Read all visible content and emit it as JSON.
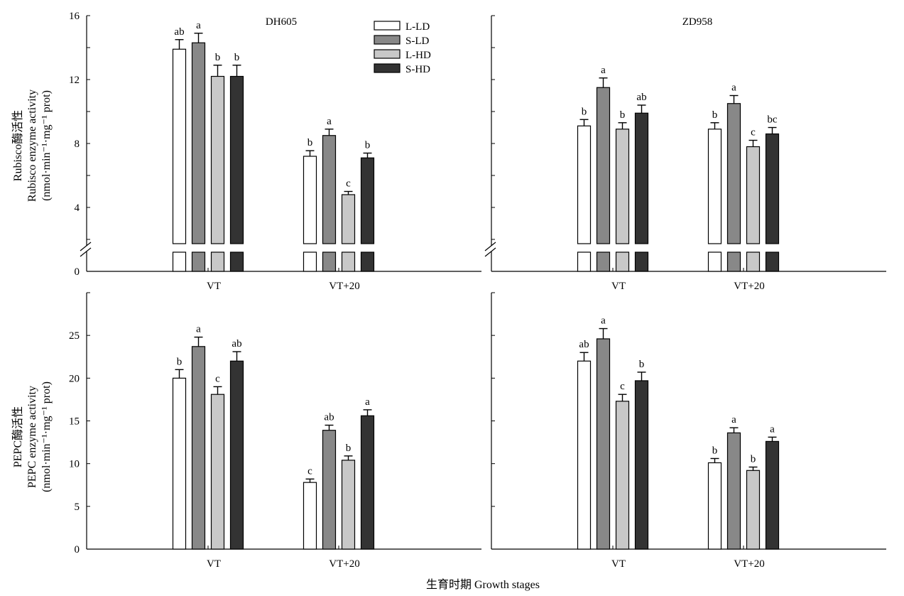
{
  "figure": {
    "x_axis_title": "生育时期 Growth stages",
    "y_axis_titles": {
      "rubisco": [
        "Rubisco酶活性",
        "Rubisco enzyme activity",
        "(nmol·min⁻¹·mg⁻¹ prot)"
      ],
      "pepc": [
        "PEPC酶活性",
        "PEPC enzyme activity",
        "(nmol·min⁻¹·mg⁻¹ prot)"
      ]
    }
  },
  "legend": [
    {
      "name": "L-LD",
      "color": "#ffffff"
    },
    {
      "name": "S-LD",
      "color": "#888888"
    },
    {
      "name": "L-HD",
      "color": "#c8c8c8"
    },
    {
      "name": "S-HD",
      "color": "#333333"
    }
  ],
  "chart_data": [
    {
      "type": "bar",
      "title": "DH605",
      "xlabel": "",
      "ylabel": "Rubisco enzyme activity (nmol·min⁻¹·mg⁻¹ prot)",
      "ylim": [
        0,
        16
      ],
      "yticks": [
        0,
        4,
        8,
        12,
        16
      ],
      "axis_break": true,
      "categories": [
        "VT",
        "VT+20"
      ],
      "series": [
        {
          "name": "L-LD",
          "values": [
            13.9,
            7.2
          ],
          "errors": [
            0.6,
            0.35
          ],
          "letters": [
            "ab",
            "b"
          ]
        },
        {
          "name": "S-LD",
          "values": [
            14.3,
            8.5
          ],
          "errors": [
            0.6,
            0.4
          ],
          "letters": [
            "a",
            "a"
          ]
        },
        {
          "name": "L-HD",
          "values": [
            12.2,
            4.8
          ],
          "errors": [
            0.7,
            0.2
          ],
          "letters": [
            "b",
            "c"
          ]
        },
        {
          "name": "S-HD",
          "values": [
            12.2,
            7.1
          ],
          "errors": [
            0.7,
            0.3
          ],
          "letters": [
            "b",
            "b"
          ]
        }
      ]
    },
    {
      "type": "bar",
      "title": "ZD958",
      "xlabel": "",
      "ylabel": "",
      "ylim": [
        0,
        16
      ],
      "yticks": [
        0,
        4,
        8,
        12,
        16
      ],
      "axis_break": true,
      "categories": [
        "VT",
        "VT+20"
      ],
      "series": [
        {
          "name": "L-LD",
          "values": [
            9.1,
            8.9
          ],
          "errors": [
            0.4,
            0.4
          ],
          "letters": [
            "b",
            "b"
          ]
        },
        {
          "name": "S-LD",
          "values": [
            11.5,
            10.5
          ],
          "errors": [
            0.6,
            0.5
          ],
          "letters": [
            "a",
            "a"
          ]
        },
        {
          "name": "L-HD",
          "values": [
            8.9,
            7.8
          ],
          "errors": [
            0.4,
            0.4
          ],
          "letters": [
            "b",
            "c"
          ]
        },
        {
          "name": "S-HD",
          "values": [
            9.9,
            8.6
          ],
          "errors": [
            0.5,
            0.4
          ],
          "letters": [
            "ab",
            "bc"
          ]
        }
      ]
    },
    {
      "type": "bar",
      "title": "",
      "xlabel": "",
      "ylabel": "PEPC enzyme activity (nmol·min⁻¹·mg⁻¹ prot)",
      "ylim": [
        0,
        30
      ],
      "yticks": [
        0,
        5,
        10,
        15,
        20,
        25
      ],
      "axis_break": false,
      "categories": [
        "VT",
        "VT+20"
      ],
      "series": [
        {
          "name": "L-LD",
          "values": [
            20.0,
            7.8
          ],
          "errors": [
            1.0,
            0.4
          ],
          "letters": [
            "b",
            "c"
          ]
        },
        {
          "name": "S-LD",
          "values": [
            23.7,
            13.9
          ],
          "errors": [
            1.1,
            0.6
          ],
          "letters": [
            "a",
            "ab"
          ]
        },
        {
          "name": "L-HD",
          "values": [
            18.1,
            10.4
          ],
          "errors": [
            0.9,
            0.5
          ],
          "letters": [
            "c",
            "b"
          ]
        },
        {
          "name": "S-HD",
          "values": [
            22.0,
            15.6
          ],
          "errors": [
            1.1,
            0.7
          ],
          "letters": [
            "ab",
            "a"
          ]
        }
      ]
    },
    {
      "type": "bar",
      "title": "",
      "xlabel": "",
      "ylabel": "",
      "ylim": [
        0,
        30
      ],
      "yticks": [
        0,
        5,
        10,
        15,
        20,
        25
      ],
      "axis_break": false,
      "categories": [
        "VT",
        "VT+20"
      ],
      "series": [
        {
          "name": "L-LD",
          "values": [
            22.0,
            10.1
          ],
          "errors": [
            1.0,
            0.5
          ],
          "letters": [
            "ab",
            "b"
          ]
        },
        {
          "name": "S-LD",
          "values": [
            24.6,
            13.6
          ],
          "errors": [
            1.2,
            0.6
          ],
          "letters": [
            "a",
            "a"
          ]
        },
        {
          "name": "L-HD",
          "values": [
            17.3,
            9.2
          ],
          "errors": [
            0.8,
            0.4
          ],
          "letters": [
            "c",
            "b"
          ]
        },
        {
          "name": "S-HD",
          "values": [
            19.7,
            12.6
          ],
          "errors": [
            1.0,
            0.5
          ],
          "letters": [
            "b",
            "a"
          ]
        }
      ]
    }
  ]
}
